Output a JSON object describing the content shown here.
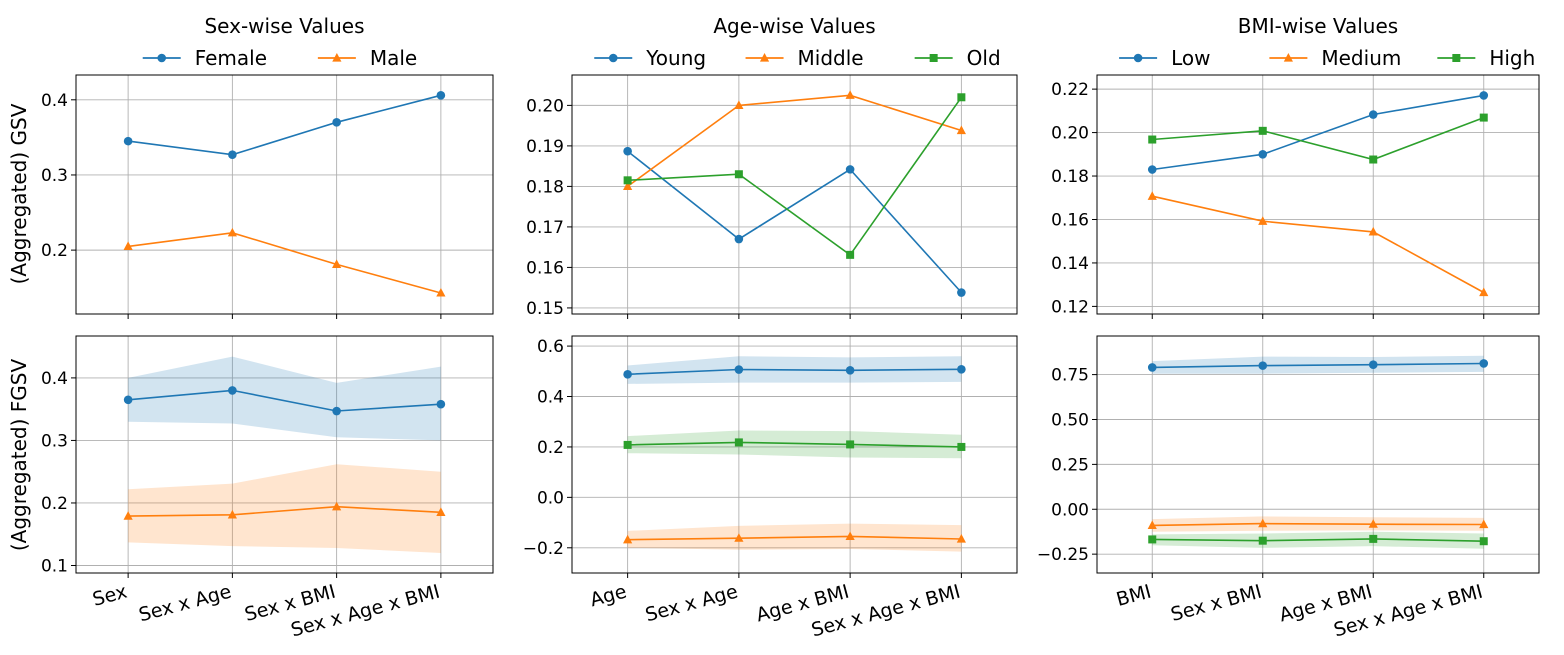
{
  "ylabels": {
    "row1": "(Aggregated) GSV",
    "row2": "(Aggregated) FGSV"
  },
  "chart_data": [
    {
      "type": "line",
      "panel": "sex-gsv",
      "title": "Sex-wise Values",
      "ylabel": "(Aggregated) GSV",
      "categories": [
        "Sex",
        "Sex x Age",
        "Sex x BMI",
        "Sex x Age x BMI"
      ],
      "ylim": [
        0.115,
        0.433
      ],
      "yticks": [
        0.2,
        0.3,
        0.4
      ],
      "yticklabels": [
        "0.2",
        "0.3",
        "0.4"
      ],
      "grid": true,
      "legend": "top",
      "series": [
        {
          "name": "Female",
          "color": "#1f77b4",
          "marker": "circle",
          "values": [
            0.345,
            0.327,
            0.37,
            0.406
          ]
        },
        {
          "name": "Male",
          "color": "#ff7f0e",
          "marker": "triangle",
          "values": [
            0.205,
            0.223,
            0.181,
            0.143
          ]
        }
      ]
    },
    {
      "type": "line",
      "panel": "age-gsv",
      "title": "Age-wise Values",
      "categories": [
        "Age",
        "Sex x Age",
        "Age x BMI",
        "Sex x Age x BMI"
      ],
      "ylim": [
        0.1485,
        0.2075
      ],
      "yticks": [
        0.15,
        0.16,
        0.17,
        0.18,
        0.19,
        0.2
      ],
      "yticklabels": [
        "0.15",
        "0.16",
        "0.17",
        "0.18",
        "0.19",
        "0.20"
      ],
      "grid": true,
      "legend": "top",
      "series": [
        {
          "name": "Young",
          "color": "#1f77b4",
          "marker": "circle",
          "values": [
            0.1887,
            0.167,
            0.1842,
            0.1538
          ]
        },
        {
          "name": "Middle",
          "color": "#ff7f0e",
          "marker": "triangle",
          "values": [
            0.18,
            0.2,
            0.2025,
            0.1938
          ]
        },
        {
          "name": "Old",
          "color": "#2ca02c",
          "marker": "square",
          "values": [
            0.1815,
            0.183,
            0.1631,
            0.202
          ]
        }
      ]
    },
    {
      "type": "line",
      "panel": "bmi-gsv",
      "title": "BMI-wise Values",
      "categories": [
        "BMI",
        "Sex x BMI",
        "Age x BMI",
        "Sex x Age x BMI"
      ],
      "ylim": [
        0.1165,
        0.2265
      ],
      "yticks": [
        0.12,
        0.14,
        0.16,
        0.18,
        0.2,
        0.22
      ],
      "yticklabels": [
        "0.12",
        "0.14",
        "0.16",
        "0.18",
        "0.20",
        "0.22"
      ],
      "grid": true,
      "legend": "top",
      "series": [
        {
          "name": "Low",
          "color": "#1f77b4",
          "marker": "circle",
          "values": [
            0.183,
            0.19,
            0.2083,
            0.2171
          ]
        },
        {
          "name": "Medium",
          "color": "#ff7f0e",
          "marker": "triangle",
          "values": [
            0.1707,
            0.1592,
            0.1543,
            0.1264
          ]
        },
        {
          "name": "High",
          "color": "#2ca02c",
          "marker": "square",
          "values": [
            0.1968,
            0.2008,
            0.1876,
            0.2069
          ]
        }
      ]
    },
    {
      "type": "line",
      "panel": "sex-fgsv",
      "ylabel": "(Aggregated) FGSV",
      "categories": [
        "Sex",
        "Sex x Age",
        "Sex x BMI",
        "Sex x Age x BMI"
      ],
      "ylim": [
        0.088,
        0.467
      ],
      "yticks": [
        0.1,
        0.2,
        0.3,
        0.4
      ],
      "yticklabels": [
        "0.1",
        "0.2",
        "0.3",
        "0.4"
      ],
      "grid": true,
      "series": [
        {
          "name": "Female",
          "color": "#1f77b4",
          "marker": "circle",
          "values": [
            0.365,
            0.38,
            0.347,
            0.358
          ],
          "lower": [
            0.33,
            0.327,
            0.305,
            0.3
          ],
          "upper": [
            0.4,
            0.434,
            0.392,
            0.418
          ]
        },
        {
          "name": "Male",
          "color": "#ff7f0e",
          "marker": "triangle",
          "values": [
            0.179,
            0.181,
            0.194,
            0.185
          ],
          "lower": [
            0.137,
            0.131,
            0.128,
            0.12
          ],
          "upper": [
            0.222,
            0.231,
            0.262,
            0.25
          ]
        }
      ]
    },
    {
      "type": "line",
      "panel": "age-fgsv",
      "categories": [
        "Age",
        "Sex x Age",
        "Age x BMI",
        "Sex x Age x BMI"
      ],
      "ylim": [
        -0.3,
        0.64
      ],
      "yticks": [
        -0.2,
        0.0,
        0.2,
        0.4,
        0.6
      ],
      "yticklabels": [
        "−0.2",
        "0.0",
        "0.2",
        "0.4",
        "0.6"
      ],
      "grid": true,
      "series": [
        {
          "name": "Young",
          "color": "#1f77b4",
          "marker": "circle",
          "values": [
            0.488,
            0.507,
            0.504,
            0.508
          ],
          "lower": [
            0.45,
            0.455,
            0.455,
            0.458
          ],
          "upper": [
            0.523,
            0.56,
            0.555,
            0.56
          ]
        },
        {
          "name": "Middle",
          "color": "#ff7f0e",
          "marker": "triangle",
          "values": [
            -0.168,
            -0.162,
            -0.155,
            -0.165
          ],
          "lower": [
            -0.2,
            -0.208,
            -0.205,
            -0.215
          ],
          "upper": [
            -0.133,
            -0.113,
            -0.104,
            -0.11
          ]
        },
        {
          "name": "Old",
          "color": "#2ca02c",
          "marker": "square",
          "values": [
            0.208,
            0.218,
            0.21,
            0.2
          ],
          "lower": [
            0.175,
            0.17,
            0.158,
            0.155
          ],
          "upper": [
            0.243,
            0.265,
            0.263,
            0.248
          ]
        }
      ]
    },
    {
      "type": "line",
      "panel": "bmi-fgsv",
      "categories": [
        "BMI",
        "Sex x BMI",
        "Age x BMI",
        "Sex x Age x BMI"
      ],
      "ylim": [
        -0.355,
        0.965
      ],
      "yticks": [
        -0.25,
        0.0,
        0.25,
        0.5,
        0.75
      ],
      "yticklabels": [
        "−0.25",
        "0.00",
        "0.25",
        "0.50",
        "0.75"
      ],
      "grid": true,
      "series": [
        {
          "name": "Low",
          "color": "#1f77b4",
          "marker": "circle",
          "values": [
            0.79,
            0.8,
            0.805,
            0.812
          ],
          "lower": [
            0.755,
            0.755,
            0.76,
            0.765
          ],
          "upper": [
            0.825,
            0.85,
            0.848,
            0.855
          ]
        },
        {
          "name": "Medium",
          "color": "#ff7f0e",
          "marker": "triangle",
          "values": [
            -0.09,
            -0.08,
            -0.083,
            -0.085
          ],
          "lower": [
            -0.125,
            -0.12,
            -0.118,
            -0.12
          ],
          "upper": [
            -0.055,
            -0.04,
            -0.045,
            -0.048
          ]
        },
        {
          "name": "High",
          "color": "#2ca02c",
          "marker": "square",
          "values": [
            -0.168,
            -0.175,
            -0.165,
            -0.178
          ],
          "lower": [
            -0.2,
            -0.215,
            -0.205,
            -0.22
          ],
          "upper": [
            -0.14,
            -0.135,
            -0.125,
            -0.135
          ]
        }
      ]
    }
  ]
}
